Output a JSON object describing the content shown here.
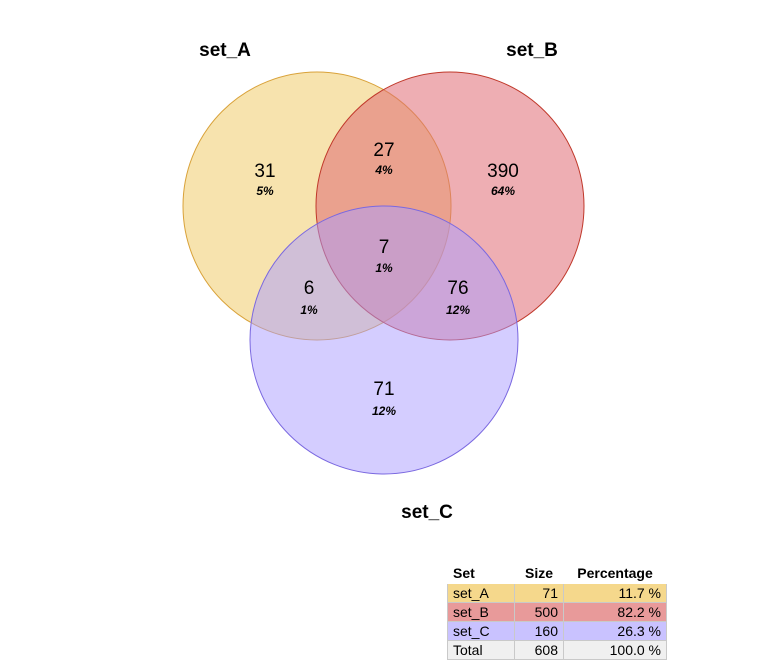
{
  "colors": {
    "set_A": "#f0c75e",
    "set_B": "#e06c75",
    "set_C": "#a99bff",
    "total": "#f0f0f0"
  },
  "sets": [
    {
      "key": "A",
      "name": "set_A",
      "color": "#f0c75e",
      "stroke": "#d9a23a"
    },
    {
      "key": "B",
      "name": "set_B",
      "color": "#e06c75",
      "stroke": "#c0392b"
    },
    {
      "key": "C",
      "name": "set_C",
      "color": "#a99bff",
      "stroke": "#7a68e0"
    }
  ],
  "regions": [
    {
      "id": "A_only",
      "count": "31",
      "percent": "5%"
    },
    {
      "id": "AB",
      "count": "27",
      "percent": "4%"
    },
    {
      "id": "B_only",
      "count": "390",
      "percent": "64%"
    },
    {
      "id": "ABC",
      "count": "7",
      "percent": "1%"
    },
    {
      "id": "AC",
      "count": "6",
      "percent": "1%"
    },
    {
      "id": "BC",
      "count": "76",
      "percent": "12%"
    },
    {
      "id": "C_only",
      "count": "71",
      "percent": "12%"
    }
  ],
  "table": {
    "headers": {
      "set": "Set",
      "size": "Size",
      "percentage": "Percentage"
    },
    "rows": [
      {
        "set": "set_A",
        "size": "71",
        "percentage": "11.7 %",
        "color": "#f5d88c"
      },
      {
        "set": "set_B",
        "size": "500",
        "percentage": "82.2 %",
        "color": "#e89a9a"
      },
      {
        "set": "set_C",
        "size": "160",
        "percentage": "26.3 %",
        "color": "#c9c2ff"
      },
      {
        "set": "Total",
        "size": "608",
        "percentage": "100.0 %",
        "color": "#f0f0f0"
      }
    ]
  }
}
